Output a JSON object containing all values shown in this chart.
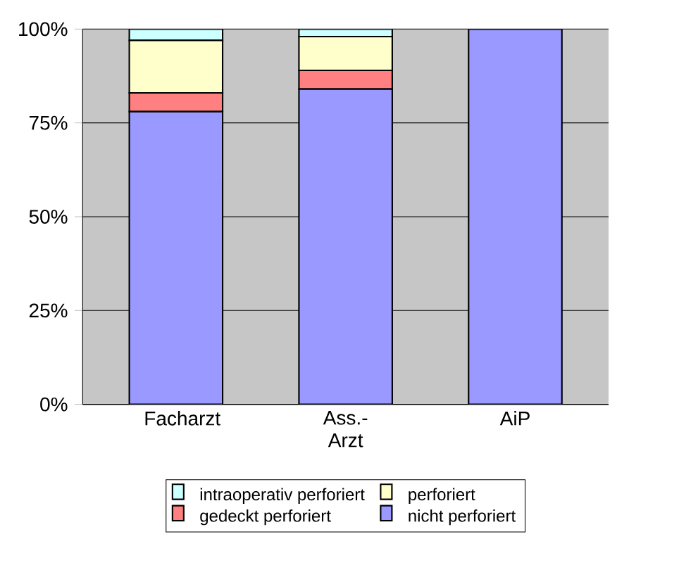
{
  "chart_data": {
    "type": "bar",
    "stacked": true,
    "categories": [
      "Facharzt",
      "Ass.-Arzt",
      "AiP"
    ],
    "series": [
      {
        "name": "nicht perforiert",
        "color": "#9999ff",
        "values": [
          78,
          84,
          100
        ]
      },
      {
        "name": "gedeckt perforiert",
        "color": "#ff8080",
        "values": [
          5,
          5,
          0
        ]
      },
      {
        "name": "perforiert",
        "color": "#ffffcc",
        "values": [
          14,
          9,
          0
        ]
      },
      {
        "name": "intraoperativ perforiert",
        "color": "#ccffff",
        "values": [
          3,
          2,
          0
        ]
      }
    ],
    "ylim": [
      0,
      100
    ],
    "yticks": [
      {
        "value": 0,
        "label": "0%"
      },
      {
        "value": 25,
        "label": "25%"
      },
      {
        "value": 50,
        "label": "50%"
      },
      {
        "value": 75,
        "label": "75%"
      },
      {
        "value": 100,
        "label": "100%"
      }
    ],
    "grid": "y",
    "legend": "bottom"
  }
}
